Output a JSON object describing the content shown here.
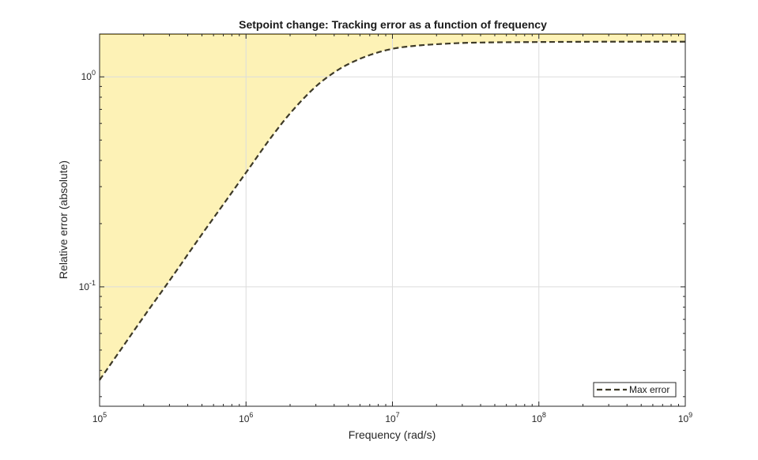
{
  "chart_data": {
    "type": "line",
    "title": "Setpoint change: Tracking error as a function of frequency",
    "xlabel": "Frequency (rad/s)",
    "ylabel": "Relative error (absolute)",
    "xscale": "log",
    "yscale": "log",
    "xlim": [
      100000,
      1000000000
    ],
    "ylim": [
      0.027,
      1.6
    ],
    "x_ticks": [
      {
        "value": 100000,
        "base": "10",
        "exp": "5"
      },
      {
        "value": 1000000,
        "base": "10",
        "exp": "6"
      },
      {
        "value": 10000000,
        "base": "10",
        "exp": "7"
      },
      {
        "value": 100000000,
        "base": "10",
        "exp": "8"
      },
      {
        "value": 1000000000,
        "base": "10",
        "exp": "9"
      }
    ],
    "y_ticks": [
      {
        "value": 0.1,
        "base": "10",
        "exp": "-1"
      },
      {
        "value": 1,
        "base": "10",
        "exp": "0"
      }
    ],
    "grid": true,
    "legend": {
      "position": "bottom-right",
      "entries": [
        "Max error"
      ]
    },
    "fill_region": "above-curve",
    "series": [
      {
        "name": "Max error",
        "style": "dashed",
        "x": [
          100000,
          150000,
          200000,
          300000,
          500000,
          700000,
          1000000,
          1500000,
          2000000,
          3000000,
          4000000,
          5000000,
          7000000,
          10000000,
          15000000,
          20000000,
          30000000,
          50000000,
          100000000,
          300000000,
          1000000000
        ],
        "values": [
          0.036,
          0.054,
          0.072,
          0.107,
          0.178,
          0.247,
          0.35,
          0.52,
          0.67,
          0.9,
          1.05,
          1.15,
          1.27,
          1.36,
          1.41,
          1.43,
          1.45,
          1.46,
          1.465,
          1.47,
          1.47
        ]
      }
    ]
  },
  "colors": {
    "fill": "#fdf2b6",
    "fill_edge": "#d8b83a",
    "line": "#3e3a28",
    "grid": "#dcdcdc",
    "axes": "#262626"
  }
}
